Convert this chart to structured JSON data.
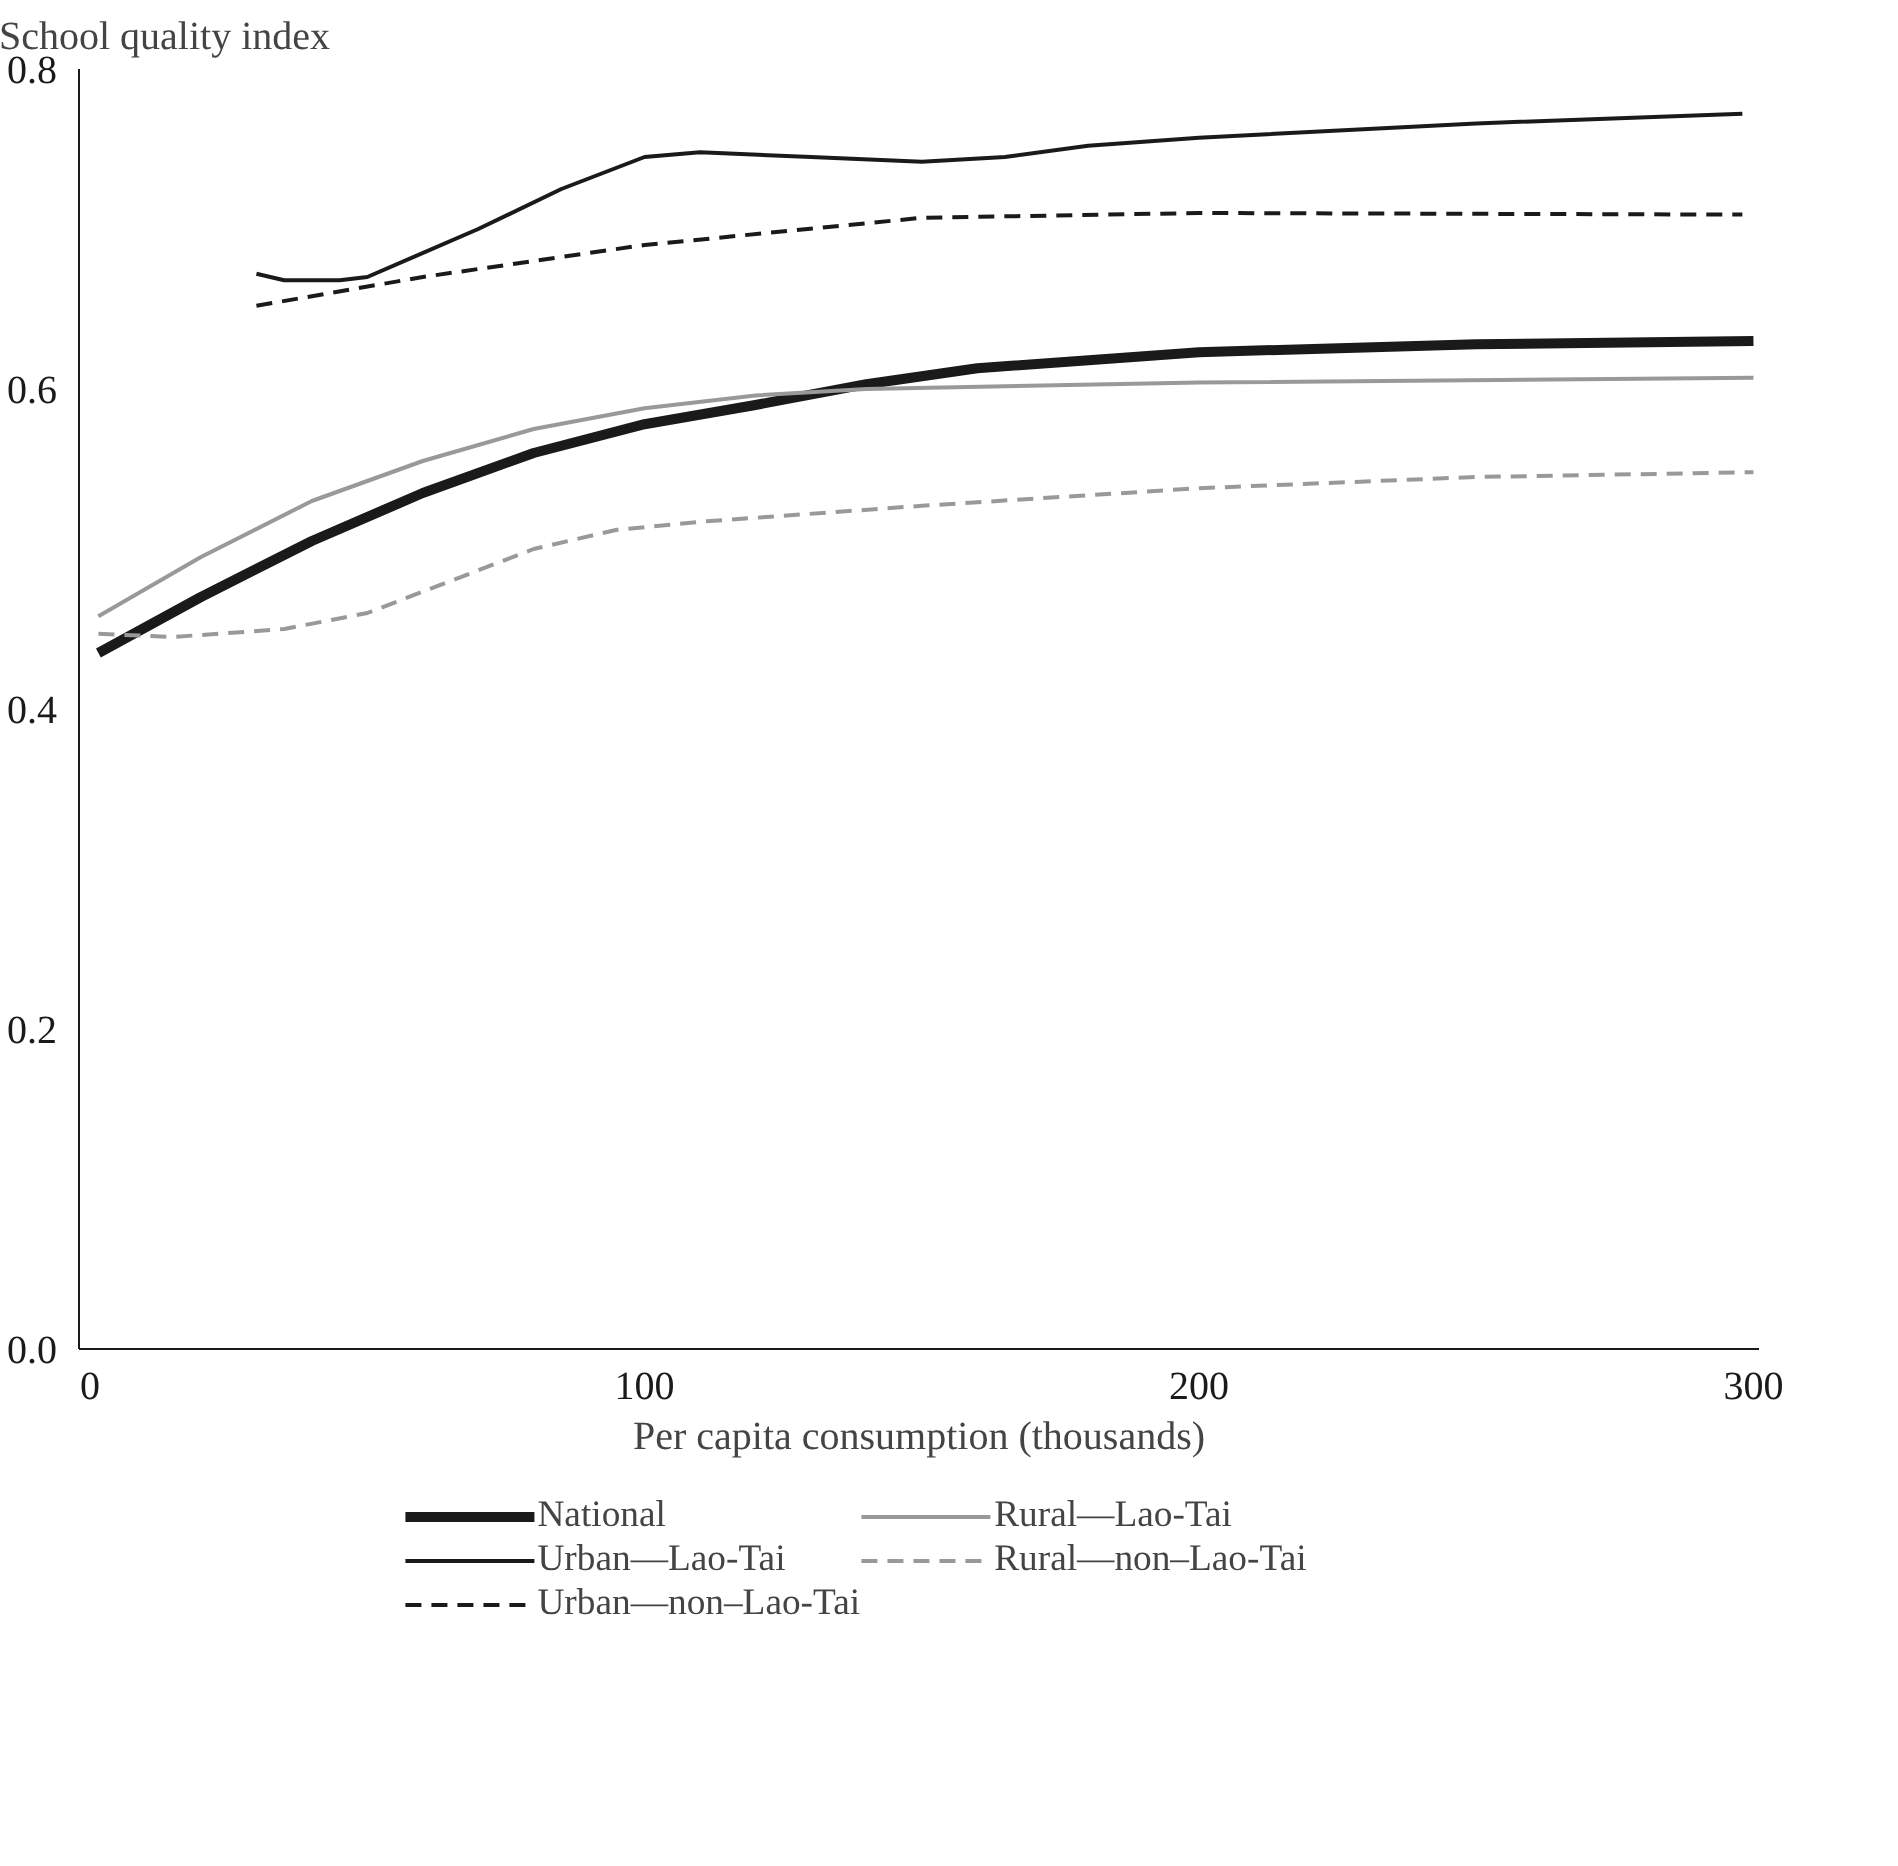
{
  "chart_data": {
    "type": "line",
    "ylabel": "School quality index",
    "xlabel": "Per capita consumption (thousands)",
    "xlim": [
      -2,
      301
    ],
    "xticks": [
      0,
      100,
      200,
      300
    ],
    "ylim": [
      0,
      0.8
    ],
    "yticks": [
      {
        "value": 0,
        "label": "0.0"
      },
      0.2,
      0.4,
      0.6,
      0.8
    ],
    "grid": false,
    "legend": "bottom",
    "marker": "none",
    "series": [
      {
        "name": "National",
        "color": "#1a1a1a",
        "line_style": "solid",
        "x": [
          1.5,
          20,
          40,
          60,
          80,
          100,
          120,
          140,
          160,
          200,
          250,
          300
        ],
        "values": [
          0.435,
          0.47,
          0.505,
          0.535,
          0.56,
          0.578,
          0.59,
          0.603,
          0.613,
          0.623,
          0.628,
          0.63
        ]
      },
      {
        "name": "Rural—Lao-Tai",
        "color": "#999999",
        "line_style": "solid",
        "x": [
          1.5,
          20,
          40,
          60,
          80,
          100,
          120,
          140,
          200,
          300
        ],
        "values": [
          0.458,
          0.495,
          0.53,
          0.555,
          0.575,
          0.588,
          0.596,
          0.6,
          0.604,
          0.607
        ]
      },
      {
        "name": "Urban—Lao-Tai",
        "color": "#1a1a1a",
        "line_style": "solid",
        "x": [
          30,
          35,
          45,
          50,
          70,
          85,
          100,
          110,
          130,
          150,
          165,
          180,
          200,
          250,
          298
        ],
        "values": [
          0.672,
          0.668,
          0.668,
          0.67,
          0.7,
          0.725,
          0.745,
          0.748,
          0.745,
          0.742,
          0.745,
          0.752,
          0.757,
          0.766,
          0.772
        ]
      },
      {
        "name": "Rural—non–Lao-Tai",
        "color": "#999999",
        "line_style": "dashed",
        "x": [
          1.5,
          15,
          35,
          50,
          65,
          80,
          95,
          110,
          150,
          200,
          250,
          300
        ],
        "values": [
          0.447,
          0.445,
          0.45,
          0.46,
          0.48,
          0.5,
          0.512,
          0.517,
          0.527,
          0.538,
          0.545,
          0.548
        ]
      },
      {
        "name": "Urban—non–Lao-Tai",
        "color": "#1a1a1a",
        "line_style": "dashed",
        "x": [
          30,
          60,
          100,
          150,
          200,
          298
        ],
        "values": [
          0.652,
          0.67,
          0.69,
          0.707,
          0.71,
          0.709
        ]
      }
    ]
  }
}
